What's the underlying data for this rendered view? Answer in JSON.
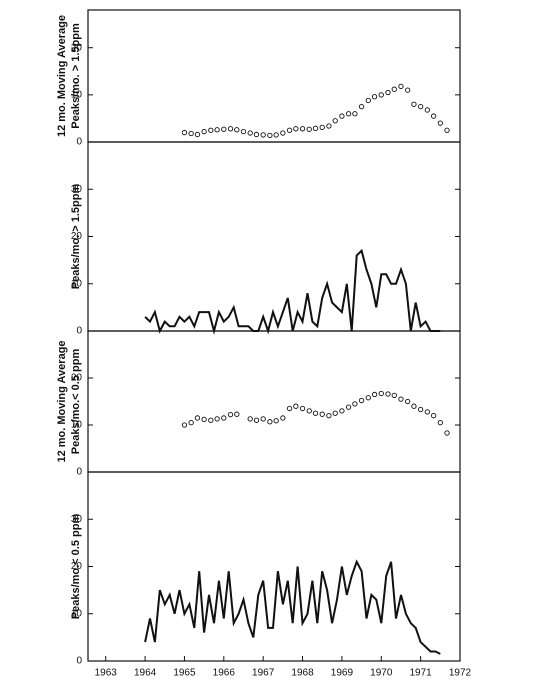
{
  "chart_data": [
    {
      "type": "scatter",
      "ylabel": [
        "12 mo. Moving Average",
        "Peaks/mo. > 1.5ppm"
      ],
      "color": "#111111",
      "xlim": [
        1962.55,
        1972.0
      ],
      "ylim": [
        0,
        28
      ],
      "yticks": [
        0,
        10,
        20
      ],
      "x": [
        1965.0,
        1965.17,
        1965.33,
        1965.5,
        1965.67,
        1965.83,
        1966.0,
        1966.17,
        1966.33,
        1966.5,
        1966.67,
        1966.83,
        1967.0,
        1967.17,
        1967.33,
        1967.5,
        1967.67,
        1967.83,
        1968.0,
        1968.17,
        1968.33,
        1968.5,
        1968.67,
        1968.83,
        1969.0,
        1969.17,
        1969.33,
        1969.5,
        1969.67,
        1969.83,
        1970.0,
        1970.17,
        1970.33,
        1970.5,
        1970.67,
        1970.83,
        1971.0,
        1971.17,
        1971.33,
        1971.5,
        1971.67
      ],
      "values": [
        2.0,
        1.8,
        1.6,
        2.2,
        2.5,
        2.6,
        2.7,
        2.8,
        2.6,
        2.2,
        1.9,
        1.6,
        1.5,
        1.4,
        1.5,
        1.9,
        2.5,
        2.8,
        2.8,
        2.7,
        2.9,
        3.1,
        3.4,
        4.5,
        5.5,
        6.0,
        6.0,
        7.5,
        8.8,
        9.6,
        10.0,
        10.5,
        11.2,
        11.8,
        11.0,
        8.0,
        7.5,
        6.8,
        5.5,
        4.0,
        2.5
      ]
    },
    {
      "type": "line",
      "ylabel": [
        "Peaks/mo. > 1.5ppm"
      ],
      "color": "#111111",
      "xlim": [
        1962.55,
        1972.0
      ],
      "ylim": [
        0,
        40
      ],
      "yticks": [
        0,
        10,
        20,
        30
      ],
      "x": [
        1964.0,
        1964.125,
        1964.25,
        1964.375,
        1964.5,
        1964.625,
        1964.75,
        1964.875,
        1965.0,
        1965.125,
        1965.25,
        1965.375,
        1965.5,
        1965.625,
        1965.75,
        1965.875,
        1966.0,
        1966.125,
        1966.25,
        1966.375,
        1966.5,
        1966.625,
        1966.75,
        1966.875,
        1967.0,
        1967.125,
        1967.25,
        1967.375,
        1967.5,
        1967.625,
        1967.75,
        1967.875,
        1968.0,
        1968.125,
        1968.25,
        1968.375,
        1968.5,
        1968.625,
        1968.75,
        1968.875,
        1969.0,
        1969.125,
        1969.25,
        1969.375,
        1969.5,
        1969.625,
        1969.75,
        1969.875,
        1970.0,
        1970.125,
        1970.25,
        1970.375,
        1970.5,
        1970.625,
        1970.75,
        1970.875,
        1971.0,
        1971.125,
        1971.25,
        1971.375,
        1971.5
      ],
      "values": [
        3,
        2,
        4,
        0,
        2,
        1,
        1,
        3,
        2,
        3,
        1,
        4,
        4,
        4,
        0,
        4,
        2,
        3,
        5,
        1,
        1,
        1,
        0,
        0,
        3,
        0,
        4,
        1,
        4,
        7,
        0,
        4,
        2,
        8,
        2,
        1,
        7,
        10,
        6,
        5,
        4,
        10,
        0,
        16,
        17,
        13,
        10,
        5,
        12,
        12,
        10,
        10,
        13,
        10,
        0,
        6,
        1,
        2,
        0,
        0,
        0
      ]
    },
    {
      "type": "scatter",
      "ylabel": [
        "12 mo. Moving Average",
        "Peaks/mo.< 0.5 ppm"
      ],
      "color": "#111111",
      "xlim": [
        1962.55,
        1972.0
      ],
      "ylim": [
        0,
        30
      ],
      "yticks": [
        0,
        10,
        20
      ],
      "x": [
        1965.0,
        1965.17,
        1965.33,
        1965.5,
        1965.67,
        1965.83,
        1966.0,
        1966.17,
        1966.33,
        1966.5,
        1966.67,
        1966.83,
        1967.0,
        1967.17,
        1967.33,
        1967.5,
        1967.67,
        1967.83,
        1968.0,
        1968.17,
        1968.33,
        1968.5,
        1968.67,
        1968.83,
        1969.0,
        1969.17,
        1969.33,
        1969.5,
        1969.67,
        1969.83,
        1970.0,
        1970.17,
        1970.33,
        1970.5,
        1970.67,
        1970.83,
        1971.0,
        1971.17,
        1971.33,
        1971.5,
        1971.67
      ],
      "values": [
        10,
        10.5,
        11.5,
        11.2,
        11.0,
        11.3,
        11.5,
        12.2,
        12.3,
        null,
        11.3,
        11.0,
        11.3,
        10.7,
        10.9,
        11.5,
        13.5,
        14.0,
        13.5,
        13.0,
        12.5,
        12.3,
        12.0,
        12.5,
        13.0,
        13.8,
        14.5,
        15.2,
        15.8,
        16.5,
        16.7,
        16.6,
        16.3,
        15.5,
        15.0,
        14.0,
        13.3,
        12.8,
        12.0,
        10.5,
        8.3
      ]
    },
    {
      "type": "line",
      "ylabel": [
        "Peaks/mo.< 0.5 ppm"
      ],
      "color": "#111111",
      "xlim": [
        1962.55,
        1972.0
      ],
      "ylim": [
        0,
        40
      ],
      "yticks": [
        0,
        10,
        20,
        30
      ],
      "xticks": [
        1963,
        1964,
        1965,
        1966,
        1967,
        1968,
        1969,
        1970,
        1971,
        1972
      ],
      "x": [
        1964.0,
        1964.125,
        1964.25,
        1964.375,
        1964.5,
        1964.625,
        1964.75,
        1964.875,
        1965.0,
        1965.125,
        1965.25,
        1965.375,
        1965.5,
        1965.625,
        1965.75,
        1965.875,
        1966.0,
        1966.125,
        1966.25,
        1966.375,
        1966.5,
        1966.625,
        1966.75,
        1966.875,
        1967.0,
        1967.125,
        1967.25,
        1967.375,
        1967.5,
        1967.625,
        1967.75,
        1967.875,
        1968.0,
        1968.125,
        1968.25,
        1968.375,
        1968.5,
        1968.625,
        1968.75,
        1968.875,
        1969.0,
        1969.125,
        1969.25,
        1969.375,
        1969.5,
        1969.625,
        1969.75,
        1969.875,
        1970.0,
        1970.125,
        1970.25,
        1970.375,
        1970.5,
        1970.625,
        1970.75,
        1970.875,
        1971.0,
        1971.125,
        1971.25,
        1971.375,
        1971.5
      ],
      "values": [
        4,
        9,
        4,
        15,
        12,
        14,
        10,
        15,
        10,
        12,
        7,
        19,
        6,
        14,
        8,
        17,
        9,
        19,
        8,
        10,
        13,
        8,
        5,
        14,
        17,
        7,
        7,
        19,
        12,
        17,
        8,
        20,
        8,
        10,
        17,
        8,
        19,
        15,
        8,
        13,
        20,
        14,
        18,
        21,
        19,
        9,
        14,
        13,
        8,
        18,
        21,
        9,
        14,
        10,
        8,
        7,
        4,
        3,
        2,
        2,
        1.5
      ]
    }
  ]
}
